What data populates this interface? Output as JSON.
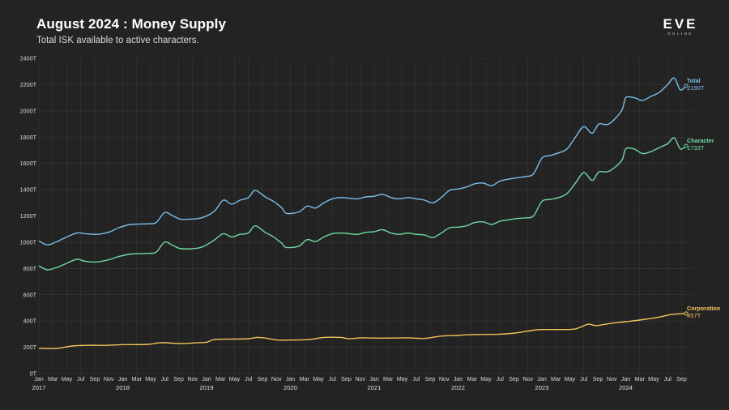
{
  "header": {
    "title": "August 2024 : Money Supply",
    "subtitle": "Total ISK available to active characters.",
    "logo_word": "EVE",
    "logo_sub": "ONLINE"
  },
  "colors": {
    "background": "#232323",
    "grid": "#3a3a3a",
    "total": "#7bbfe9",
    "character": "#6fd9a2",
    "corporation": "#f2c35a"
  },
  "chart_data": {
    "type": "line",
    "title": "August 2024 : Money Supply",
    "subtitle": "Total ISK available to active characters.",
    "xlabel": "",
    "ylabel": "",
    "ylim": [
      0,
      2400
    ],
    "y_ticks": [
      "0T",
      "200T",
      "400T",
      "600T",
      "800T",
      "1000T",
      "1200T",
      "1400T",
      "1600T",
      "1800T",
      "2000T",
      "2200T",
      "2400T"
    ],
    "month_labels": [
      "Jan",
      "Mar",
      "May",
      "Jul",
      "Sep",
      "Nov"
    ],
    "years": [
      "2017",
      "2018",
      "2019",
      "2020",
      "2021",
      "2022",
      "2023",
      "2024"
    ],
    "x_start": "2017-01",
    "x_end": "2024-08",
    "x_tick_labels": [
      "Jan",
      "Mar",
      "May",
      "Jul",
      "Sep",
      "Nov",
      "Jan",
      "Mar",
      "May",
      "Jul",
      "Sep",
      "Nov",
      "Jan",
      "Mar",
      "May",
      "Jul",
      "Sep",
      "Nov",
      "Jan",
      "Mar",
      "May",
      "Jul",
      "Sep",
      "Nov",
      "Jan",
      "Mar",
      "May",
      "Jul",
      "Sep",
      "Nov",
      "Jan",
      "Mar",
      "May",
      "Jul",
      "Sep",
      "Nov",
      "Jan",
      "Mar",
      "May",
      "Jul",
      "Sep",
      "Nov",
      "Jan",
      "Mar",
      "May",
      "Jul",
      "Sep"
    ],
    "grid": true,
    "series": [
      {
        "name": "Total",
        "end_label": "2190T",
        "points": [
          [
            2017.0,
            1010
          ],
          [
            2017.1,
            980
          ],
          [
            2017.2,
            1000
          ],
          [
            2017.3,
            1030
          ],
          [
            2017.45,
            1070
          ],
          [
            2017.55,
            1065
          ],
          [
            2017.7,
            1060
          ],
          [
            2017.85,
            1080
          ],
          [
            2017.95,
            1110
          ],
          [
            2018.1,
            1135
          ],
          [
            2018.3,
            1140
          ],
          [
            2018.4,
            1150
          ],
          [
            2018.5,
            1225
          ],
          [
            2018.6,
            1200
          ],
          [
            2018.7,
            1175
          ],
          [
            2018.9,
            1180
          ],
          [
            2019.0,
            1200
          ],
          [
            2019.1,
            1240
          ],
          [
            2019.2,
            1320
          ],
          [
            2019.3,
            1290
          ],
          [
            2019.4,
            1320
          ],
          [
            2019.5,
            1340
          ],
          [
            2019.58,
            1395
          ],
          [
            2019.7,
            1345
          ],
          [
            2019.8,
            1310
          ],
          [
            2019.9,
            1260
          ],
          [
            2019.95,
            1220
          ],
          [
            2020.1,
            1230
          ],
          [
            2020.2,
            1275
          ],
          [
            2020.3,
            1260
          ],
          [
            2020.4,
            1300
          ],
          [
            2020.5,
            1330
          ],
          [
            2020.6,
            1340
          ],
          [
            2020.7,
            1335
          ],
          [
            2020.8,
            1330
          ],
          [
            2020.9,
            1345
          ],
          [
            2021.0,
            1350
          ],
          [
            2021.1,
            1365
          ],
          [
            2021.2,
            1340
          ],
          [
            2021.3,
            1330
          ],
          [
            2021.4,
            1340
          ],
          [
            2021.5,
            1330
          ],
          [
            2021.6,
            1320
          ],
          [
            2021.7,
            1300
          ],
          [
            2021.8,
            1340
          ],
          [
            2021.9,
            1395
          ],
          [
            2022.0,
            1405
          ],
          [
            2022.1,
            1420
          ],
          [
            2022.2,
            1445
          ],
          [
            2022.3,
            1450
          ],
          [
            2022.4,
            1430
          ],
          [
            2022.5,
            1465
          ],
          [
            2022.6,
            1480
          ],
          [
            2022.7,
            1490
          ],
          [
            2022.8,
            1500
          ],
          [
            2022.9,
            1520
          ],
          [
            2023.0,
            1640
          ],
          [
            2023.1,
            1660
          ],
          [
            2023.2,
            1680
          ],
          [
            2023.3,
            1710
          ],
          [
            2023.4,
            1800
          ],
          [
            2023.5,
            1880
          ],
          [
            2023.6,
            1830
          ],
          [
            2023.68,
            1900
          ],
          [
            2023.8,
            1900
          ],
          [
            2023.95,
            2000
          ],
          [
            2024.0,
            2100
          ],
          [
            2024.1,
            2100
          ],
          [
            2024.2,
            2080
          ],
          [
            2024.3,
            2110
          ],
          [
            2024.4,
            2140
          ],
          [
            2024.5,
            2200
          ],
          [
            2024.58,
            2250
          ],
          [
            2024.65,
            2160
          ],
          [
            2024.72,
            2190
          ]
        ]
      },
      {
        "name": "Character",
        "end_label": "1733T",
        "points": [
          [
            2017.0,
            820
          ],
          [
            2017.1,
            790
          ],
          [
            2017.2,
            805
          ],
          [
            2017.3,
            830
          ],
          [
            2017.45,
            870
          ],
          [
            2017.55,
            855
          ],
          [
            2017.7,
            850
          ],
          [
            2017.85,
            870
          ],
          [
            2017.95,
            890
          ],
          [
            2018.1,
            910
          ],
          [
            2018.3,
            915
          ],
          [
            2018.4,
            925
          ],
          [
            2018.5,
            1000
          ],
          [
            2018.6,
            975
          ],
          [
            2018.7,
            950
          ],
          [
            2018.9,
            955
          ],
          [
            2019.0,
            980
          ],
          [
            2019.1,
            1020
          ],
          [
            2019.2,
            1065
          ],
          [
            2019.3,
            1040
          ],
          [
            2019.4,
            1060
          ],
          [
            2019.5,
            1070
          ],
          [
            2019.58,
            1125
          ],
          [
            2019.7,
            1075
          ],
          [
            2019.8,
            1040
          ],
          [
            2019.9,
            990
          ],
          [
            2019.95,
            960
          ],
          [
            2020.1,
            970
          ],
          [
            2020.2,
            1020
          ],
          [
            2020.3,
            1005
          ],
          [
            2020.4,
            1040
          ],
          [
            2020.5,
            1065
          ],
          [
            2020.6,
            1070
          ],
          [
            2020.7,
            1065
          ],
          [
            2020.8,
            1060
          ],
          [
            2020.9,
            1075
          ],
          [
            2021.0,
            1080
          ],
          [
            2021.1,
            1095
          ],
          [
            2021.2,
            1070
          ],
          [
            2021.3,
            1060
          ],
          [
            2021.4,
            1070
          ],
          [
            2021.5,
            1060
          ],
          [
            2021.6,
            1055
          ],
          [
            2021.7,
            1035
          ],
          [
            2021.8,
            1070
          ],
          [
            2021.9,
            1110
          ],
          [
            2022.0,
            1115
          ],
          [
            2022.1,
            1125
          ],
          [
            2022.2,
            1150
          ],
          [
            2022.3,
            1155
          ],
          [
            2022.4,
            1135
          ],
          [
            2022.5,
            1160
          ],
          [
            2022.6,
            1170
          ],
          [
            2022.7,
            1180
          ],
          [
            2022.8,
            1185
          ],
          [
            2022.9,
            1200
          ],
          [
            2023.0,
            1310
          ],
          [
            2023.1,
            1325
          ],
          [
            2023.2,
            1340
          ],
          [
            2023.3,
            1370
          ],
          [
            2023.4,
            1450
          ],
          [
            2023.5,
            1530
          ],
          [
            2023.6,
            1470
          ],
          [
            2023.68,
            1535
          ],
          [
            2023.8,
            1540
          ],
          [
            2023.95,
            1620
          ],
          [
            2024.0,
            1710
          ],
          [
            2024.1,
            1710
          ],
          [
            2024.2,
            1675
          ],
          [
            2024.3,
            1690
          ],
          [
            2024.4,
            1720
          ],
          [
            2024.5,
            1750
          ],
          [
            2024.58,
            1795
          ],
          [
            2024.65,
            1710
          ],
          [
            2024.72,
            1733
          ]
        ]
      },
      {
        "name": "Corporation",
        "end_label": "457T",
        "points": [
          [
            2017.0,
            192
          ],
          [
            2017.2,
            190
          ],
          [
            2017.4,
            210
          ],
          [
            2017.6,
            215
          ],
          [
            2017.8,
            215
          ],
          [
            2018.0,
            220
          ],
          [
            2018.3,
            222
          ],
          [
            2018.45,
            235
          ],
          [
            2018.7,
            228
          ],
          [
            2018.9,
            235
          ],
          [
            2019.0,
            238
          ],
          [
            2019.1,
            260
          ],
          [
            2019.3,
            262
          ],
          [
            2019.5,
            265
          ],
          [
            2019.6,
            275
          ],
          [
            2019.7,
            270
          ],
          [
            2019.85,
            255
          ],
          [
            2020.0,
            255
          ],
          [
            2020.2,
            258
          ],
          [
            2020.3,
            265
          ],
          [
            2020.4,
            275
          ],
          [
            2020.6,
            275
          ],
          [
            2020.7,
            265
          ],
          [
            2020.85,
            272
          ],
          [
            2021.0,
            270
          ],
          [
            2021.2,
            270
          ],
          [
            2021.4,
            272
          ],
          [
            2021.6,
            268
          ],
          [
            2021.8,
            285
          ],
          [
            2022.0,
            290
          ],
          [
            2022.1,
            295
          ],
          [
            2022.3,
            298
          ],
          [
            2022.5,
            300
          ],
          [
            2022.7,
            310
          ],
          [
            2022.9,
            330
          ],
          [
            2023.0,
            335
          ],
          [
            2023.2,
            335
          ],
          [
            2023.4,
            340
          ],
          [
            2023.55,
            375
          ],
          [
            2023.65,
            365
          ],
          [
            2023.8,
            380
          ],
          [
            2024.0,
            395
          ],
          [
            2024.2,
            410
          ],
          [
            2024.4,
            430
          ],
          [
            2024.55,
            450
          ],
          [
            2024.72,
            457
          ]
        ]
      }
    ]
  }
}
